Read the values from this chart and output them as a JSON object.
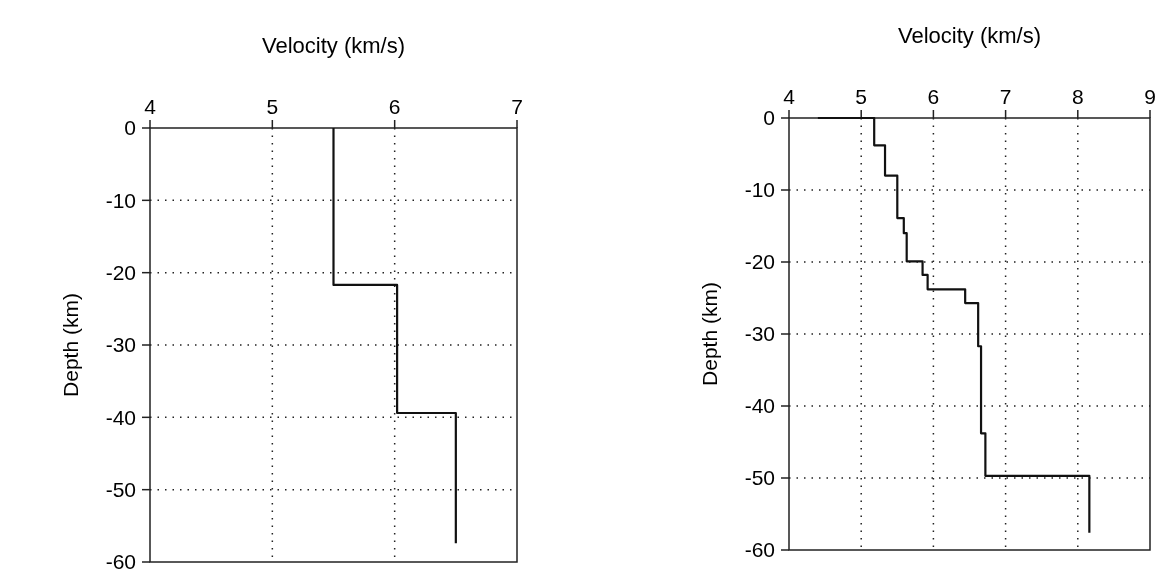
{
  "chart_data": [
    {
      "type": "line",
      "xlabel": "Velocity (km/s)",
      "ylabel": "Depth (km)",
      "xlim": [
        4,
        7
      ],
      "xticks": [
        4,
        5,
        6,
        7
      ],
      "ylim": [
        -60,
        0
      ],
      "yticks": [
        -60,
        -50,
        -40,
        -30,
        -20,
        -10,
        0
      ],
      "grid": true,
      "line_style": "solid",
      "marker": "none",
      "series": [
        {
          "color": "#111111",
          "x": [
            5.5,
            5.5,
            6.02,
            6.02,
            6.5,
            6.5
          ],
          "values": [
            0,
            -21.7,
            -21.7,
            -39.4,
            -39.4,
            -57.4
          ]
        }
      ]
    },
    {
      "type": "line",
      "xlabel": "Velocity (km/s)",
      "ylabel": "Depth (km)",
      "xlim": [
        4,
        9
      ],
      "xticks": [
        4,
        5,
        6,
        7,
        8,
        9
      ],
      "ylim": [
        -60,
        0
      ],
      "yticks": [
        -60,
        -50,
        -40,
        -30,
        -20,
        -10,
        0
      ],
      "grid": true,
      "line_style": "solid",
      "marker": "none",
      "series": [
        {
          "color": "#111111",
          "x": [
            4.4,
            5.18,
            5.18,
            5.33,
            5.33,
            5.5,
            5.5,
            5.59,
            5.59,
            5.63,
            5.63,
            5.85,
            5.85,
            5.92,
            5.92,
            6.44,
            6.44,
            6.62,
            6.62,
            6.66,
            6.66,
            6.72,
            6.72,
            8.16,
            8.16
          ],
          "values": [
            0,
            0,
            -3.8,
            -3.8,
            -8,
            -8,
            -13.9,
            -13.9,
            -16,
            -16,
            -19.9,
            -19.9,
            -21.8,
            -21.8,
            -23.8,
            -23.8,
            -25.7,
            -25.7,
            -31.7,
            -31.7,
            -43.8,
            -43.8,
            -49.7,
            -49.7,
            -57.6
          ]
        }
      ]
    }
  ]
}
